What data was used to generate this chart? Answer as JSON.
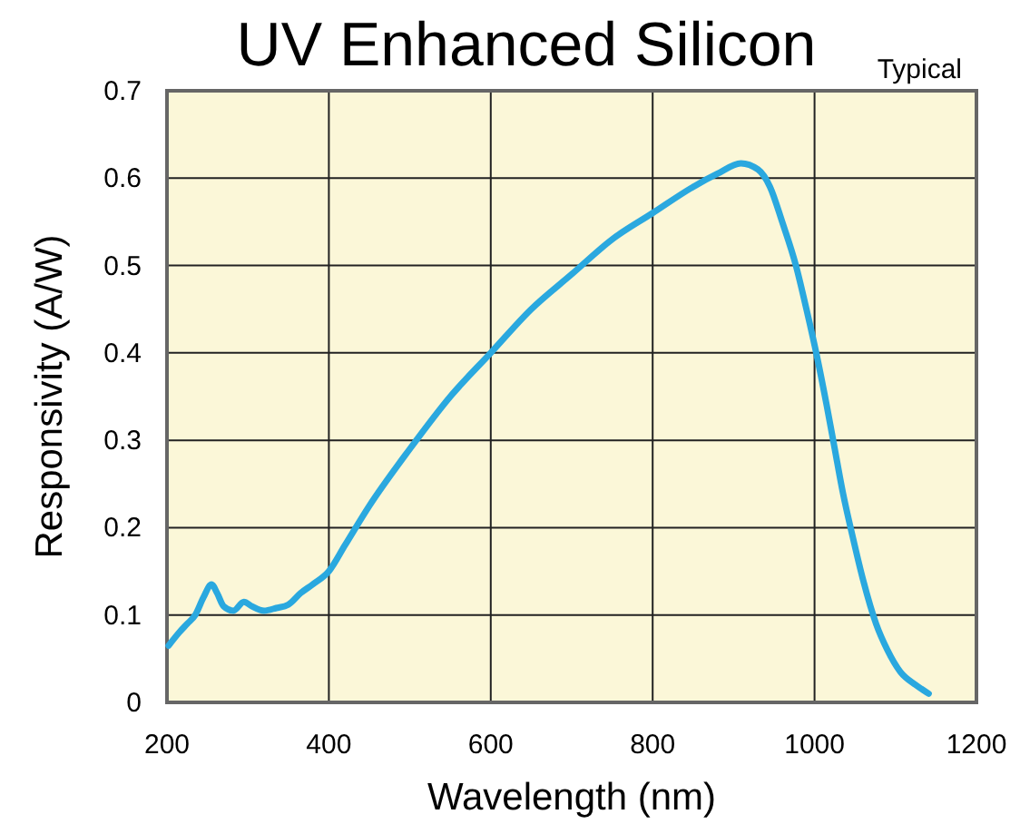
{
  "chart_data": {
    "type": "line",
    "title": "UV Enhanced Silicon",
    "annotations": [
      "Typical"
    ],
    "xlabel": "Wavelength (nm)",
    "ylabel": "Responsivity (A/W)",
    "xlim": [
      200,
      1200
    ],
    "xticks": [
      200,
      400,
      600,
      800,
      1000,
      1200
    ],
    "ylim": [
      0,
      0.7
    ],
    "yticks": [
      0,
      0.1,
      0.2,
      0.3,
      0.4,
      0.5,
      0.6,
      0.7
    ],
    "grid": true,
    "marker": "none",
    "line_style": "solid",
    "series": [
      {
        "color": "#2aa8df",
        "x": [
          202,
          215,
          225,
          235,
          245,
          255,
          262,
          270,
          282,
          295,
          305,
          320,
          335,
          350,
          365,
          380,
          400,
          420,
          450,
          500,
          550,
          600,
          650,
          700,
          750,
          800,
          850,
          880,
          909,
          930,
          945,
          960,
          977,
          990,
          1003,
          1015,
          1025,
          1035,
          1047,
          1060,
          1076,
          1090,
          1106,
          1125,
          1141
        ],
        "values": [
          0.065,
          0.08,
          0.09,
          0.1,
          0.12,
          0.135,
          0.125,
          0.11,
          0.105,
          0.115,
          0.11,
          0.105,
          0.108,
          0.112,
          0.125,
          0.135,
          0.15,
          0.18,
          0.225,
          0.29,
          0.35,
          0.4,
          0.45,
          0.49,
          0.53,
          0.56,
          0.59,
          0.605,
          0.617,
          0.61,
          0.59,
          0.55,
          0.5,
          0.45,
          0.396,
          0.34,
          0.29,
          0.24,
          0.19,
          0.14,
          0.09,
          0.06,
          0.035,
          0.02,
          0.01
        ]
      }
    ]
  }
}
